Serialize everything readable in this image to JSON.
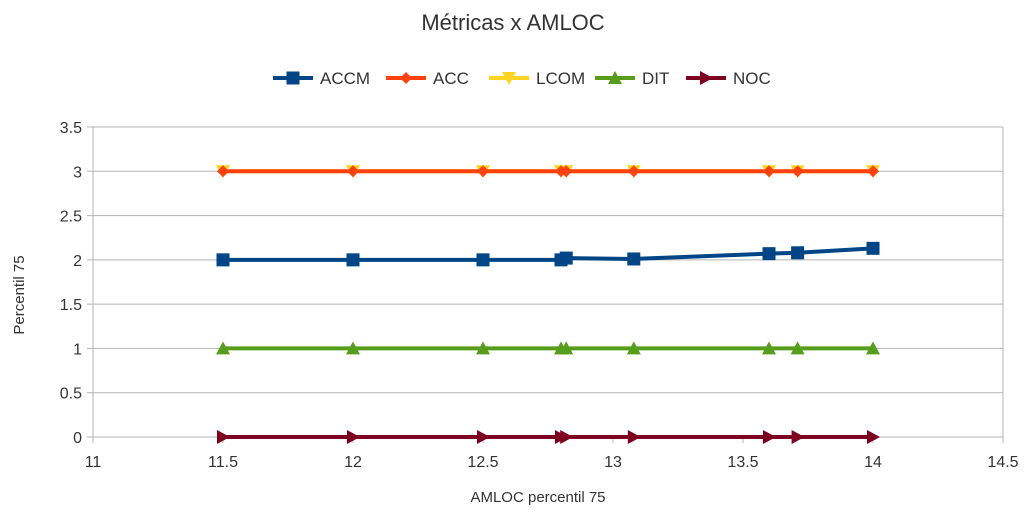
{
  "chart_data": {
    "type": "line",
    "title": "Métricas x AMLOC",
    "xlabel": "AMLOC percentil 75",
    "ylabel": "Percentil 75",
    "xlim": [
      11,
      14.5
    ],
    "ylim": [
      0,
      3.5
    ],
    "xticks": [
      11,
      11.5,
      12,
      12.5,
      13,
      13.5,
      14,
      14.5
    ],
    "xtick_labels": [
      "11",
      "11.5",
      "12",
      "12.5",
      "13",
      "13.5",
      "14",
      "14.5"
    ],
    "yticks": [
      0,
      0.5,
      1,
      1.5,
      2,
      2.5,
      3,
      3.5
    ],
    "ytick_labels": [
      "0",
      "0.5",
      "1",
      "1.5",
      "2",
      "2.5",
      "3",
      "3.5"
    ],
    "grid": "horizontal",
    "legend_position": "top",
    "x": [
      11.5,
      12,
      12.5,
      12.8,
      12.82,
      13.08,
      13.6,
      13.71,
      14
    ],
    "series": [
      {
        "name": "ACCM",
        "color": "#004586",
        "marker": "square",
        "values": [
          2,
          2,
          2,
          2,
          2.02,
          2.01,
          2.07,
          2.08,
          2.13
        ]
      },
      {
        "name": "ACC",
        "color": "#ff420e",
        "marker": "diamond",
        "values": [
          3,
          3,
          3,
          3,
          3,
          3,
          3,
          3,
          3
        ]
      },
      {
        "name": "LCOM",
        "color": "#ffd320",
        "marker": "triangle-down",
        "values": [
          3,
          3,
          3,
          3,
          3,
          3,
          3,
          3,
          3
        ]
      },
      {
        "name": "DIT",
        "color": "#579d1c",
        "marker": "triangle-up",
        "values": [
          1,
          1,
          1,
          1,
          1,
          1,
          1,
          1,
          1
        ]
      },
      {
        "name": "NOC",
        "color": "#7e0021",
        "marker": "triangle-right",
        "values": [
          0,
          0,
          0,
          0,
          0,
          0,
          0,
          0,
          0
        ]
      }
    ]
  }
}
